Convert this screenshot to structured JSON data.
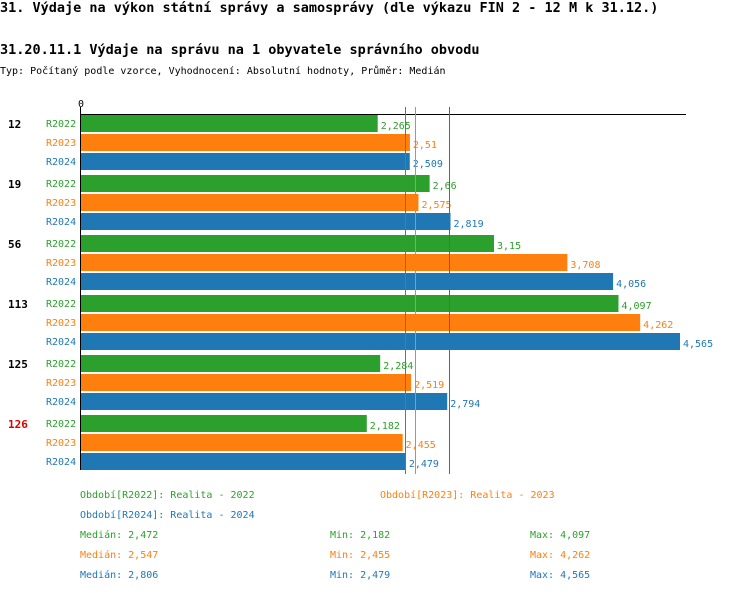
{
  "title": "31. Výdaje na výkon státní správy a samosprávy (dle výkazu FIN 2 - 12 M k 31.12.)",
  "subtitle": "31.20.11.1 Výdaje na správu na 1 obyvatele správního obvodu",
  "type_line": "Typ: Počítaný podle vzorce, Vyhodnocení: Absolutní hodnoty, Průměr: Medián",
  "colors": {
    "R2022": "#2ca02c",
    "R2023": "#ff7f0e",
    "R2024": "#1f77b4",
    "highlight_group": "#dd0000"
  },
  "chart_data": {
    "type": "bar",
    "orientation": "horizontal",
    "axis_zero_label": "0",
    "xlim": [
      0,
      4.565
    ],
    "categories": [
      "12",
      "19",
      "56",
      "113",
      "125",
      "126"
    ],
    "highlighted_category": "126",
    "series": [
      {
        "name": "R2022",
        "values": [
          2.265,
          2.66,
          3.15,
          4.097,
          2.284,
          2.182
        ],
        "labels": [
          "2,265",
          "2,66",
          "3,15",
          "4,097",
          "2,284",
          "2,182"
        ]
      },
      {
        "name": "R2023",
        "values": [
          2.51,
          2.575,
          3.708,
          4.262,
          2.519,
          2.455
        ],
        "labels": [
          "2,51",
          "2,575",
          "3,708",
          "4,262",
          "2,519",
          "2,455"
        ]
      },
      {
        "name": "R2024",
        "values": [
          2.509,
          2.819,
          4.056,
          4.565,
          2.794,
          2.479
        ],
        "labels": [
          "2,509",
          "2,819",
          "4,056",
          "4,565",
          "2,794",
          "2,479"
        ]
      }
    ],
    "median_lines": [
      {
        "series": "R2022",
        "value": 2.472
      },
      {
        "series": "R2023",
        "value": 2.547
      },
      {
        "series": "R2024",
        "value": 2.806
      }
    ]
  },
  "legend": {
    "r2022": "Období[R2022]: Realita - 2022",
    "r2023": "Období[R2023]: Realita - 2023",
    "r2024": "Období[R2024]: Realita - 2024"
  },
  "stats": {
    "r2022": {
      "median": "Medián: 2,472",
      "min": "Min: 2,182",
      "max": "Max: 4,097"
    },
    "r2023": {
      "median": "Medián: 2,547",
      "min": "Min: 2,455",
      "max": "Max: 4,262"
    },
    "r2024": {
      "median": "Medián: 2,806",
      "min": "Min: 2,479",
      "max": "Max: 4,565"
    }
  }
}
